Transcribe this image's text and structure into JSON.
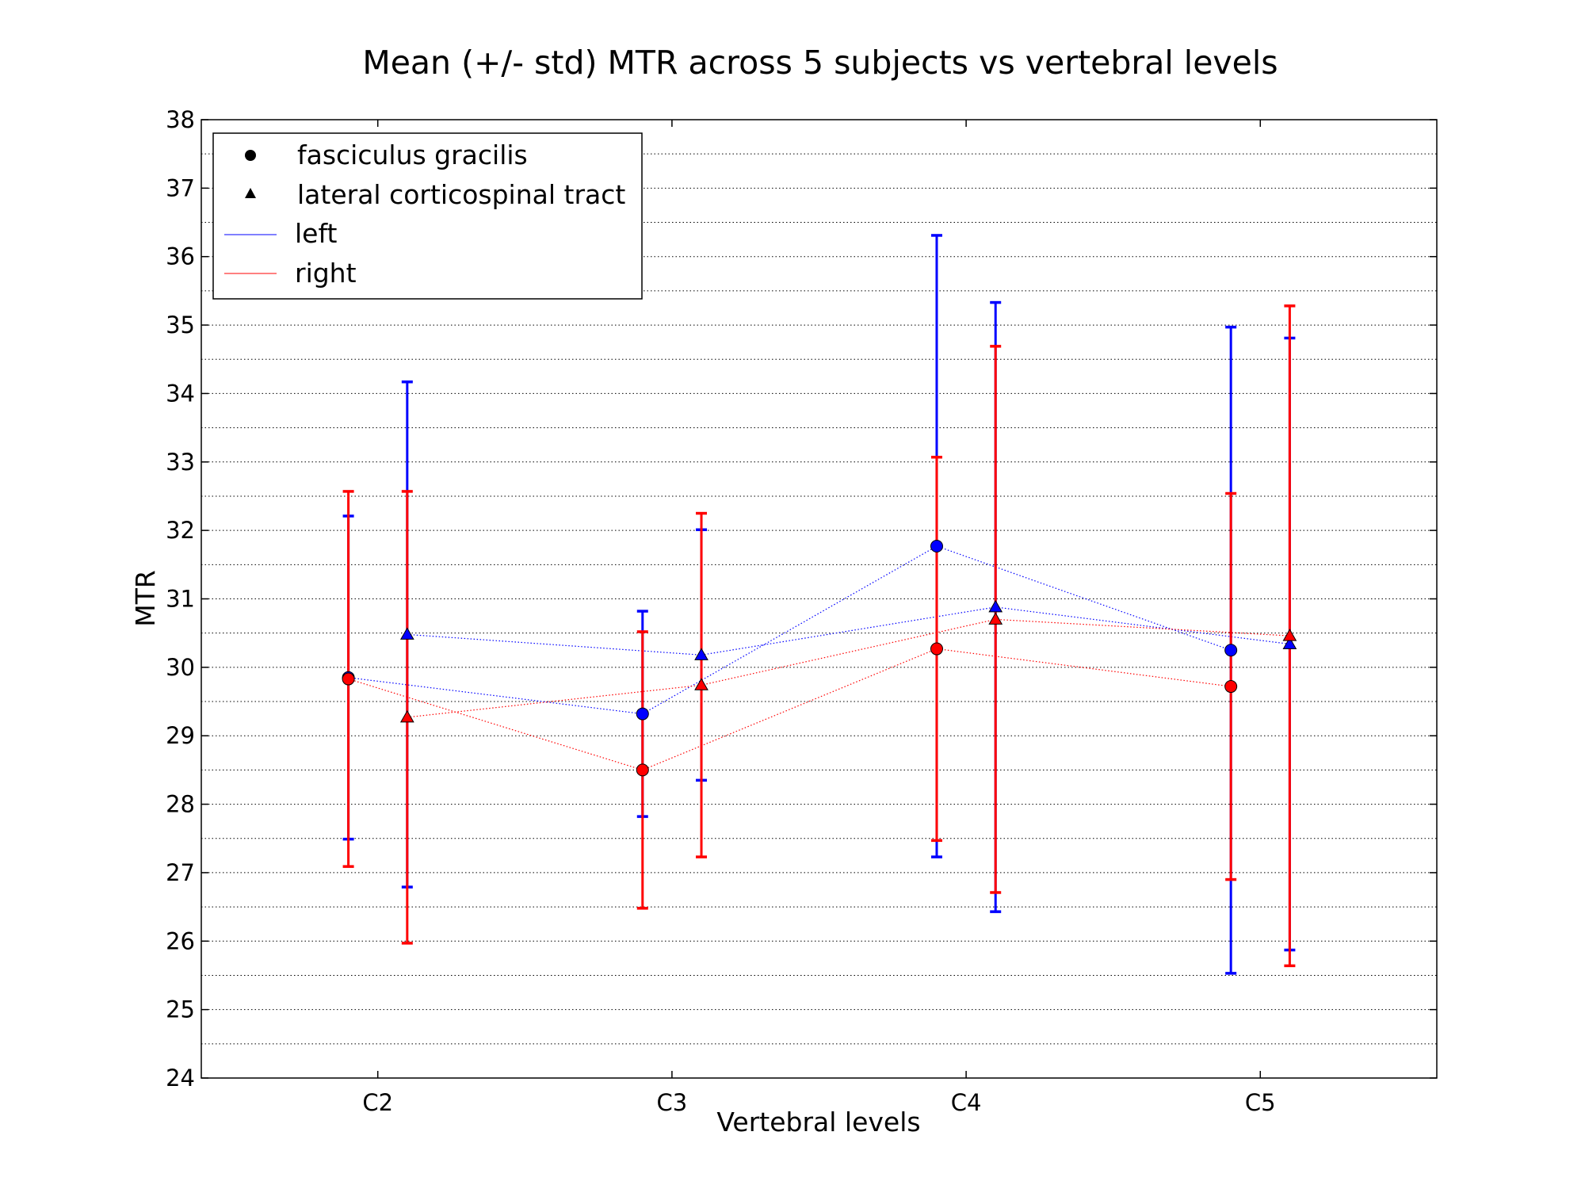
{
  "chart_data": {
    "type": "scatter",
    "title": "Mean (+/- std) MTR across 5 subjects vs vertebral levels",
    "xlabel": "Vertebral levels",
    "ylabel": "MTR",
    "categories": [
      "C2",
      "C3",
      "C4",
      "C5"
    ],
    "ylim": [
      24,
      38
    ],
    "yticks": [
      24,
      25,
      26,
      27,
      28,
      29,
      30,
      31,
      32,
      33,
      34,
      35,
      36,
      37,
      38
    ],
    "grid": "horizontal dotted at major and half ticks",
    "legend": {
      "placement": "top-left",
      "entries": [
        {
          "label": "fasciculus gracilis",
          "marker": "circle"
        },
        {
          "label": "lateral corticospinal tract",
          "marker": "triangle"
        },
        {
          "label": "left",
          "color": "#0000ff"
        },
        {
          "label": "right",
          "color": "#ff0000"
        }
      ]
    },
    "series": [
      {
        "tract": "fasciculus gracilis",
        "side": "left",
        "marker": "circle",
        "color": "#0000ff",
        "x_offset": -0.1,
        "values": [
          29.85,
          29.32,
          31.77,
          30.25
        ],
        "std": [
          2.36,
          1.5,
          4.54,
          4.72
        ]
      },
      {
        "tract": "fasciculus gracilis",
        "side": "right",
        "marker": "circle",
        "color": "#ff0000",
        "x_offset": -0.1,
        "values": [
          29.83,
          28.5,
          30.27,
          29.72
        ],
        "std": [
          2.74,
          2.02,
          2.8,
          2.82
        ]
      },
      {
        "tract": "lateral corticospinal tract",
        "side": "left",
        "marker": "triangle",
        "color": "#0000ff",
        "x_offset": 0.1,
        "values": [
          30.48,
          30.18,
          30.88,
          30.34
        ],
        "std": [
          3.69,
          1.83,
          4.45,
          4.47
        ]
      },
      {
        "tract": "lateral corticospinal tract",
        "side": "right",
        "marker": "triangle",
        "color": "#ff0000",
        "x_offset": 0.1,
        "values": [
          29.27,
          29.74,
          30.7,
          30.46
        ],
        "std": [
          3.3,
          2.51,
          3.99,
          4.82
        ]
      }
    ]
  }
}
